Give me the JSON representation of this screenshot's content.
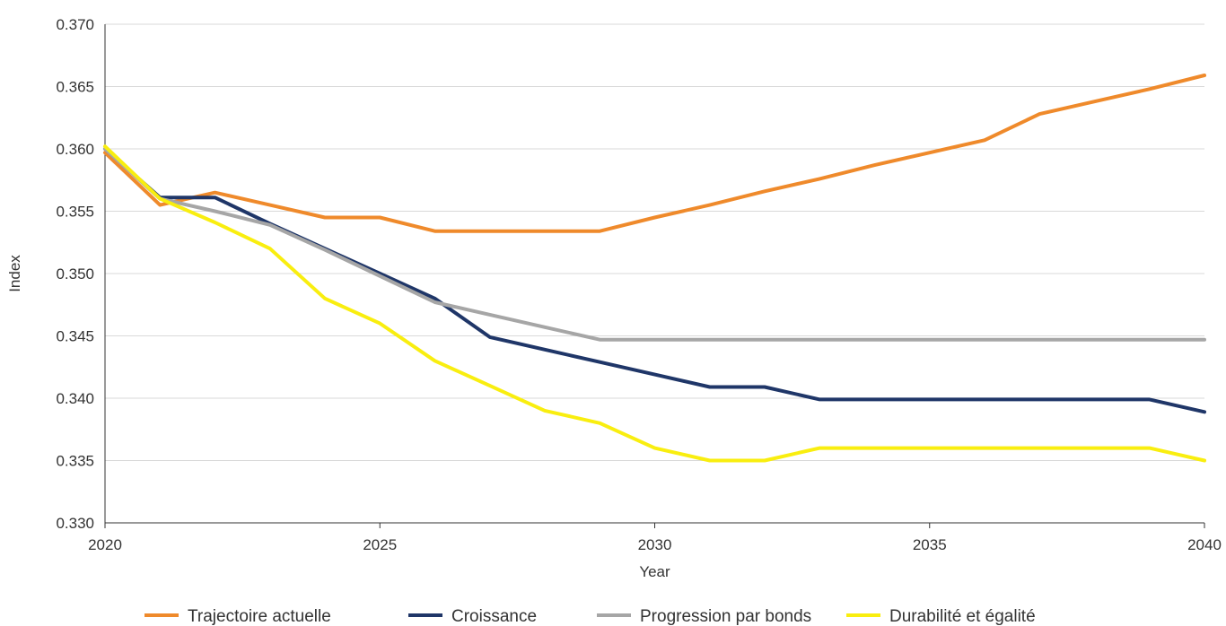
{
  "chart_data": {
    "type": "line",
    "xlabel": "Year",
    "ylabel": "Index",
    "xlim": [
      2020,
      2040
    ],
    "ylim": [
      0.33,
      0.37
    ],
    "x_ticks": [
      "2020",
      "2025",
      "2030",
      "2035",
      "2040"
    ],
    "y_ticks": [
      "0.330",
      "0.335",
      "0.340",
      "0.345",
      "0.350",
      "0.355",
      "0.360",
      "0.365",
      "0.370"
    ],
    "grid": "horizontal",
    "legend_position": "bottom",
    "x": [
      2020,
      2021,
      2022,
      2023,
      2024,
      2025,
      2026,
      2027,
      2028,
      2029,
      2030,
      2031,
      2032,
      2033,
      2034,
      2035,
      2036,
      2037,
      2038,
      2039,
      2040
    ],
    "series": [
      {
        "name": "Trajectoire actuelle",
        "color": "#EF8A2B",
        "values": [
          0.3597,
          0.3555,
          0.3565,
          0.3555,
          0.3545,
          0.3545,
          0.3534,
          0.3534,
          0.3534,
          0.3534,
          0.3545,
          0.3555,
          0.3566,
          0.3576,
          0.3587,
          0.3597,
          0.3607,
          0.3628,
          0.3638,
          0.3648,
          0.3659
        ]
      },
      {
        "name": "Croissance",
        "color": "#1F3668",
        "values": [
          0.36,
          0.3561,
          0.3561,
          0.354,
          0.352,
          0.35,
          0.348,
          0.3449,
          0.3439,
          0.3429,
          0.3419,
          0.3409,
          0.3409,
          0.3399,
          0.3399,
          0.3399,
          0.3399,
          0.3399,
          0.3399,
          0.3399,
          0.3389
        ]
      },
      {
        "name": "Progression par bonds",
        "color": "#A6A6A6",
        "values": [
          0.36,
          0.356,
          0.355,
          0.3539,
          0.3519,
          0.3498,
          0.3477,
          0.3467,
          0.3457,
          0.3447,
          0.3447,
          0.3447,
          0.3447,
          0.3447,
          0.3447,
          0.3447,
          0.3447,
          0.3447,
          0.3447,
          0.3447,
          0.3447
        ]
      },
      {
        "name": "Durabilité et égalité",
        "color": "#F9EE0F",
        "values": [
          0.3602,
          0.356,
          0.3541,
          0.352,
          0.348,
          0.346,
          0.343,
          0.341,
          0.339,
          0.338,
          0.336,
          0.335,
          0.335,
          0.336,
          0.336,
          0.336,
          0.336,
          0.336,
          0.336,
          0.336,
          0.335
        ]
      }
    ]
  }
}
